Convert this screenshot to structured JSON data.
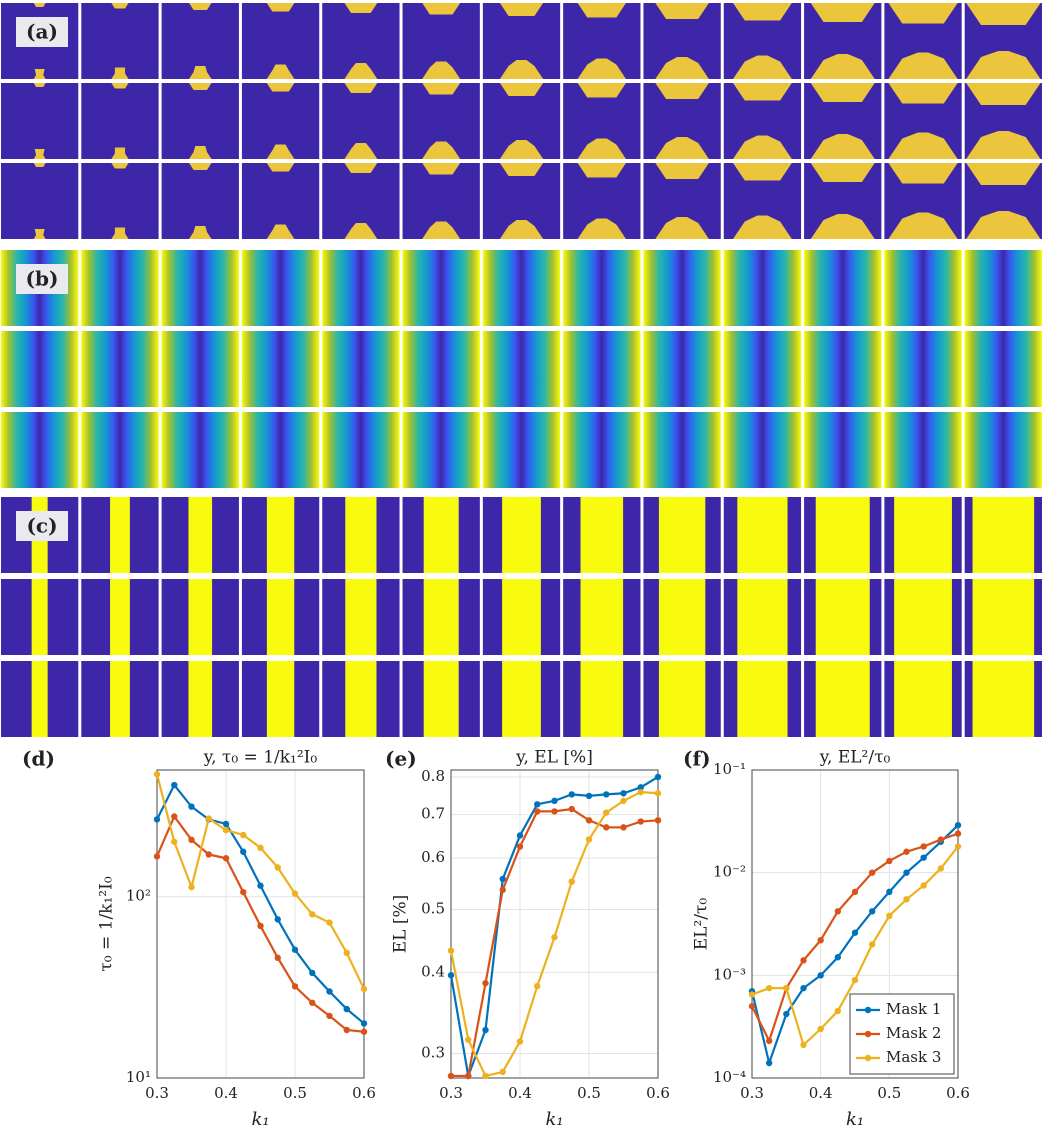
{
  "image_panels": [
    "(a)",
    "(b)",
    "(c)"
  ],
  "chart_data": [
    {
      "type": "line",
      "label": "(d)",
      "title": "y, τ₀ = 1/k₁²I₀",
      "xlabel": "k₁",
      "ylabel": "τ₀ = 1/k₁²I₀",
      "log_y": true,
      "grid": true,
      "x": [
        0.3,
        0.325,
        0.35,
        0.375,
        0.4,
        0.425,
        0.45,
        0.475,
        0.5,
        0.525,
        0.55,
        0.575,
        0.6
      ],
      "xlim": [
        0.3,
        0.6
      ],
      "xticks": [
        0.3,
        0.4,
        0.5,
        0.6
      ],
      "ylim": [
        10,
        500
      ],
      "yticks": [
        {
          "value": 10,
          "label": "10¹"
        },
        {
          "value": 100,
          "label": "10²"
        }
      ],
      "series": [
        {
          "name": "Mask 1",
          "color": "#0072BD",
          "values": [
            267,
            413,
            314,
            267,
            252,
            177,
            115,
            75,
            51,
            38,
            30,
            24,
            20
          ]
        },
        {
          "name": "Mask 2",
          "color": "#D95319",
          "values": [
            167,
            277,
            206,
            171,
            163,
            106,
            69,
            46,
            32,
            26,
            22,
            18.4,
            18
          ]
        },
        {
          "name": "Mask 3",
          "color": "#EDB120",
          "values": [
            474,
            201,
            113,
            270,
            233,
            219,
            186,
            145,
            104,
            80,
            72,
            49,
            31
          ]
        }
      ]
    },
    {
      "type": "line",
      "label": "(e)",
      "title": "y, EL [%]",
      "xlabel": "k₁",
      "ylabel": "EL [%]",
      "log_y": true,
      "grid": true,
      "x": [
        0.3,
        0.325,
        0.35,
        0.375,
        0.4,
        0.425,
        0.45,
        0.475,
        0.5,
        0.525,
        0.55,
        0.575,
        0.6
      ],
      "xlim": [
        0.3,
        0.6
      ],
      "xticks": [
        0.3,
        0.4,
        0.5,
        0.6
      ],
      "ylim": [
        0.275,
        0.82
      ],
      "yticks": [
        0.3,
        0.4,
        0.5,
        0.6,
        0.7,
        0.8
      ],
      "series": [
        {
          "name": "Mask 1",
          "color": "#0072BD",
          "values": [
            0.396,
            0.277,
            0.326,
            0.557,
            0.65,
            0.726,
            0.735,
            0.752,
            0.748,
            0.752,
            0.755,
            0.771,
            0.8
          ]
        },
        {
          "name": "Mask 2",
          "color": "#D95319",
          "values": [
            0.277,
            0.277,
            0.385,
            0.536,
            0.625,
            0.708,
            0.708,
            0.714,
            0.686,
            0.669,
            0.669,
            0.683,
            0.686
          ]
        },
        {
          "name": "Mask 3",
          "color": "#EDB120",
          "values": [
            0.432,
            0.315,
            0.277,
            0.281,
            0.313,
            0.381,
            0.453,
            0.552,
            0.641,
            0.705,
            0.735,
            0.758,
            0.755
          ]
        }
      ]
    },
    {
      "type": "line",
      "label": "(f)",
      "title": "y, EL²/τ₀",
      "xlabel": "k₁",
      "ylabel": "EL²/τ₀",
      "log_y": true,
      "grid": true,
      "legend": "southeast",
      "x": [
        0.3,
        0.325,
        0.35,
        0.375,
        0.4,
        0.425,
        0.45,
        0.475,
        0.5,
        0.525,
        0.55,
        0.575,
        0.6
      ],
      "xlim": [
        0.3,
        0.6
      ],
      "xticks": [
        0.3,
        0.4,
        0.5,
        0.6
      ],
      "ylim": [
        0.0001,
        0.1
      ],
      "yticks": [
        {
          "value": 0.0001,
          "label": "10⁻⁴"
        },
        {
          "value": 0.001,
          "label": "10⁻³"
        },
        {
          "value": 0.01,
          "label": "10⁻²"
        },
        {
          "value": 0.1,
          "label": "10⁻¹"
        }
      ],
      "series": [
        {
          "name": "Mask 1",
          "color": "#0072BD",
          "values": [
            0.0007,
            0.00014,
            0.00042,
            0.00075,
            0.001,
            0.0015,
            0.0026,
            0.0042,
            0.0065,
            0.01,
            0.014,
            0.02,
            0.029
          ]
        },
        {
          "name": "Mask 2",
          "color": "#D95319",
          "values": [
            0.0005,
            0.00023,
            0.00075,
            0.0014,
            0.0022,
            0.0042,
            0.0065,
            0.01,
            0.013,
            0.016,
            0.018,
            0.021,
            0.024
          ]
        },
        {
          "name": "Mask 3",
          "color": "#EDB120",
          "values": [
            0.00065,
            0.00075,
            0.00075,
            0.00021,
            0.0003,
            0.00045,
            0.0009,
            0.002,
            0.0038,
            0.0055,
            0.0075,
            0.011,
            0.018
          ]
        }
      ]
    }
  ]
}
